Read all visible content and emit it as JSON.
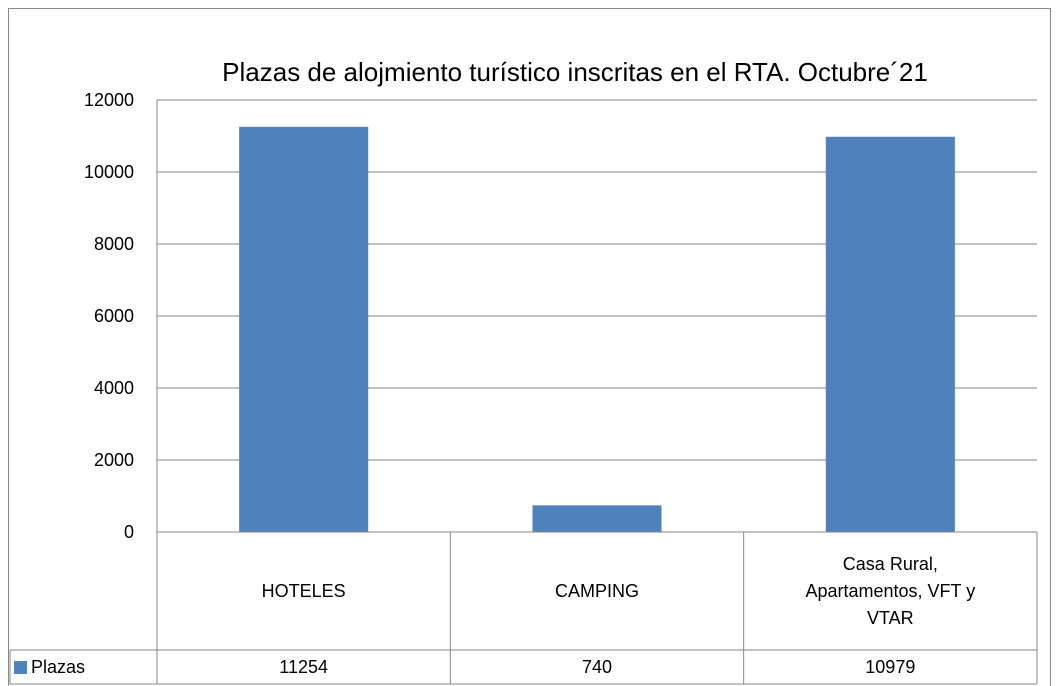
{
  "chart_data": {
    "type": "bar",
    "title": "Plazas de alojmiento turístico inscritas en el RTA. Octubre´21",
    "categories": [
      "HOTELES",
      "CAMPING",
      "Casa Rural, Apartamentos, VFT y VTAR"
    ],
    "series": [
      {
        "name": "Plazas",
        "color": "#4f81bd",
        "values": [
          11254,
          740,
          10979
        ]
      }
    ],
    "ylim": [
      0,
      12000
    ],
    "yticks": [
      0,
      2000,
      4000,
      6000,
      8000,
      10000,
      12000
    ],
    "grid": true
  }
}
